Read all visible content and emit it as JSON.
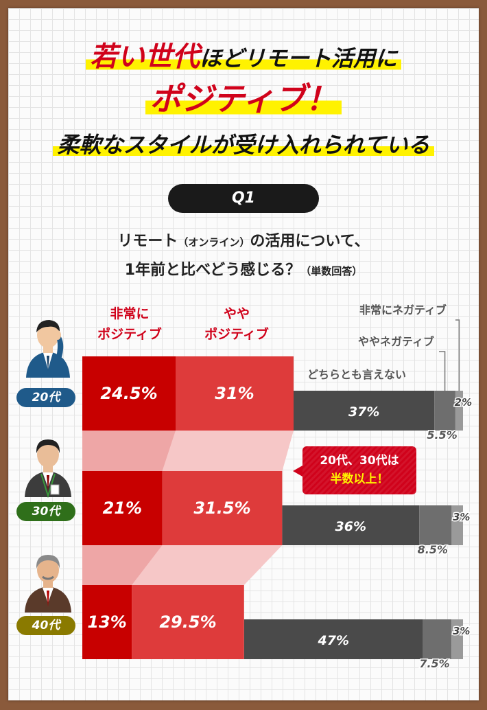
{
  "title": {
    "line1_red": "若い世代",
    "line1_rest": "ほどリモート活用に",
    "line2": "ポジティブ！",
    "line3": "柔軟なスタイルが受け入れられている"
  },
  "question": {
    "badge": "Q1",
    "line1": "リモート",
    "line1_small": "（オンライン）",
    "line1_rest": "の活用について、",
    "line2": "1年前と比べどう感じる？",
    "line2_small": "（単数回答）"
  },
  "callout": {
    "line1": "20代、30代は",
    "line2": "半数以上！"
  },
  "colors": {
    "very_positive": "#c80000",
    "somewhat_positive": "#de3b3b",
    "neutral": "#4a4a4a",
    "somewhat_negative": "#6e6e6e",
    "very_negative": "#9a9a9a",
    "band": "#f6c7c7"
  },
  "chart_data": {
    "type": "bar",
    "orientation": "horizontal",
    "stacked": true,
    "categories": [
      "20代",
      "30代",
      "40代"
    ],
    "category_colors": [
      "#1f5a8a",
      "#2f6f1a",
      "#8a7a00"
    ],
    "series": [
      {
        "name": "非常にポジティブ",
        "name_lines": [
          "非常に",
          "ポジティブ"
        ],
        "values": [
          24.5,
          21,
          13
        ],
        "labels": [
          "24.5%",
          "21%",
          "13%"
        ]
      },
      {
        "name": "ややポジティブ",
        "name_lines": [
          "やや",
          "ポジティブ"
        ],
        "values": [
          31,
          31.5,
          29.5
        ],
        "labels": [
          "31%",
          "31.5%",
          "29.5%"
        ]
      },
      {
        "name": "どちらとも言えない",
        "values": [
          37,
          36,
          47
        ],
        "labels": [
          "37%",
          "36%",
          "47%"
        ]
      },
      {
        "name": "ややネガティブ",
        "values": [
          5.5,
          8.5,
          7.5
        ],
        "labels": [
          "5.5%",
          "8.5%",
          "7.5%"
        ]
      },
      {
        "name": "非常にネガティブ",
        "values": [
          2,
          3,
          3
        ],
        "labels": [
          "2%",
          "3%",
          "3%"
        ]
      }
    ]
  }
}
